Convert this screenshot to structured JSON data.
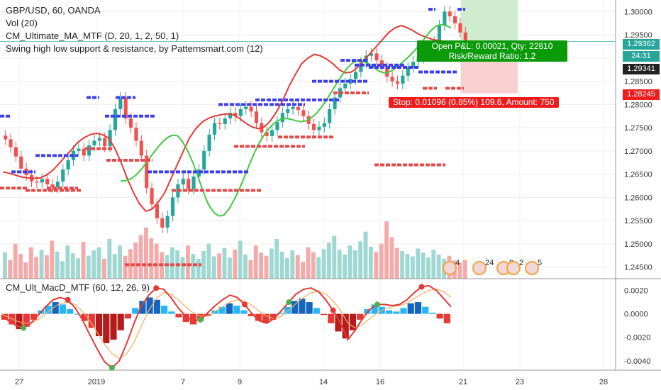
{
  "legend": {
    "symbol": "GBP/USD, 60, OANDA",
    "vol": "Vol (20)",
    "ma": "CM_Ultimate_MA_MTF (D, 20, 1, 2, 50, 1)",
    "swing": "Swing high low support & resistance, by Patternsmart.com (12)"
  },
  "macd_legend": "CM_Ult_MacD_MTF (60, 12, 26, 9)",
  "position": {
    "pnl": "Open P&L: 0.00021, Qty: 22810",
    "rr": "Risk/Reward Ratio: 1.2",
    "stop": "Stop: 0.01096 (0.85%) 109.6, Amount: 750"
  },
  "price_labels": {
    "current": "1.29362",
    "countdown": "24:31",
    "last": "1.29341",
    "stop": "1.28245"
  },
  "colors": {
    "up": "#26a69a",
    "down": "#ef5350",
    "ma_red": "#e53935",
    "ma_green": "#43c743",
    "resistance": "#3d3df0",
    "support": "#e84848",
    "target_zone": "#cfeccf",
    "stop_zone": "#f9d0d0"
  },
  "chart_data": {
    "type": "candlestick",
    "x_ticks": [
      "27",
      "2019",
      "7",
      "9",
      "14",
      "16",
      "21",
      "23",
      "28"
    ],
    "y_ticks": [
      "1.24500",
      "1.25000",
      "1.25500",
      "1.26000",
      "1.26500",
      "1.27000",
      "1.27500",
      "1.28000",
      "1.28500",
      "1.29000",
      "1.29500",
      "1.30000"
    ],
    "ylim": [
      1.2425,
      1.3025
    ],
    "close": [
      1.2725,
      1.2708,
      1.2688,
      1.2662,
      1.2648,
      1.2634,
      1.2632,
      1.264,
      1.2628,
      1.2622,
      1.2634,
      1.266,
      1.268,
      1.27,
      1.2705,
      1.269,
      1.2712,
      1.2722,
      1.2728,
      1.271,
      1.2745,
      1.279,
      1.2815,
      1.277,
      1.275,
      1.2722,
      1.269,
      1.262,
      1.2585,
      1.2555,
      1.2535,
      1.256,
      1.26,
      1.2628,
      1.264,
      1.2618,
      1.2645,
      1.266,
      1.27,
      1.2735,
      1.276,
      1.2758,
      1.277,
      1.2782,
      1.2775,
      1.279,
      1.2795,
      1.2785,
      1.276,
      1.274,
      1.2732,
      1.2745,
      1.2762,
      1.2782,
      1.279,
      1.2795,
      1.2788,
      1.2775,
      1.2758,
      1.2745,
      1.2752,
      1.276,
      1.279,
      1.2815,
      1.2835,
      1.2845,
      1.2855,
      1.287,
      1.289,
      1.2905,
      1.291,
      1.2895,
      1.288,
      1.286,
      1.285,
      1.2845,
      1.2862,
      1.288,
      1.2892,
      1.29,
      1.2905,
      1.2915,
      1.2935,
      1.297,
      1.3,
      1.299,
      1.2975,
      1.2955,
      1.2936
    ],
    "volume": [
      0.44,
      0.31,
      0.58,
      0.41,
      0.27,
      0.52,
      0.36,
      0.48,
      0.39,
      0.63,
      0.45,
      0.29,
      0.55,
      0.42,
      0.34,
      0.61,
      0.38,
      0.47,
      0.52,
      0.33,
      0.66,
      0.41,
      0.55,
      0.38,
      0.49,
      0.6,
      0.72,
      0.85,
      0.67,
      0.58,
      0.44,
      0.39,
      0.52,
      0.47,
      0.36,
      0.55,
      0.41,
      0.33,
      0.46,
      0.58,
      0.37,
      0.42,
      0.51,
      0.35,
      0.48,
      0.63,
      0.4,
      0.31,
      0.55,
      0.43,
      0.38,
      0.5,
      0.66,
      0.45,
      0.34,
      0.47,
      0.39,
      0.28,
      0.52,
      0.44,
      0.36,
      0.49,
      0.6,
      0.71,
      0.48,
      0.4,
      0.55,
      0.47,
      0.62,
      0.78,
      0.53,
      0.44,
      0.58,
      0.95,
      0.69,
      0.51,
      0.46,
      0.41,
      0.37,
      0.5,
      0.43,
      0.35,
      0.48,
      0.4,
      0.33,
      0.38,
      0.3,
      0.27,
      0.31
    ],
    "ma_red": [
      1.2655,
      1.2652,
      1.2648,
      1.2644,
      1.2642,
      1.2641,
      1.2642,
      1.2648,
      1.2658,
      1.2672,
      1.2688,
      1.2702,
      1.2718,
      1.2728,
      1.2735,
      1.2738,
      1.2735,
      1.2728,
      1.2705,
      1.2675,
      1.264,
      1.261,
      1.2585,
      1.257,
      1.2575,
      1.259,
      1.261,
      1.264,
      1.267,
      1.27,
      1.2728,
      1.2748,
      1.2762,
      1.277,
      1.2775,
      1.2778,
      1.278,
      1.2778,
      1.277,
      1.276,
      1.2752,
      1.2748,
      1.2752,
      1.2765,
      1.2785,
      1.281,
      1.284,
      1.2865,
      1.2888,
      1.29,
      1.2908,
      1.2905,
      1.2898,
      1.2888,
      1.2875,
      1.2868,
      1.287,
      1.288,
      1.2895,
      1.291,
      1.2925,
      1.294,
      1.2955,
      1.2965,
      1.297,
      1.2965,
      1.2958,
      1.295,
      1.2945,
      1.294,
      1.2938,
      1.2936,
      1.2936
    ],
    "ma_green": [
      1.2635,
      1.2636,
      1.264,
      1.2648,
      1.266,
      1.2675,
      1.269,
      1.2705,
      1.2718,
      1.2728,
      1.2734,
      1.2733,
      1.272,
      1.27,
      1.2675,
      1.2645,
      1.2612,
      1.2585,
      1.2568,
      1.256,
      1.2562,
      1.2575,
      1.2595,
      1.2618,
      1.2645,
      1.2672,
      1.2698,
      1.272,
      1.2738,
      1.2752,
      1.2762,
      1.2768,
      1.277,
      1.2768,
      1.2765,
      1.2763,
      1.2765,
      1.2772,
      1.2782,
      1.2796,
      1.2812,
      1.283,
      1.2848,
      1.2865,
      1.288,
      1.289,
      1.2895,
      1.2893,
      1.2888,
      1.288,
      1.2872,
      1.2868,
      1.287,
      1.2876,
      1.2885,
      1.2895,
      1.2905,
      1.2917,
      1.293,
      1.2944,
      1.2958,
      1.2968,
      1.2972,
      1.297,
      1.2965
    ],
    "resistance": [
      [
        0,
        16,
        1.2775
      ],
      [
        16,
        50,
        1.2655
      ],
      [
        50,
        110,
        1.269
      ],
      [
        122,
        140,
        1.2815
      ],
      [
        163,
        191,
        1.2815
      ],
      [
        148,
        220,
        1.2775
      ],
      [
        208,
        350,
        1.2655
      ],
      [
        308,
        430,
        1.28
      ],
      [
        360,
        480,
        1.281
      ],
      [
        440,
        520,
        1.285
      ],
      [
        480,
        520,
        1.2895
      ],
      [
        500,
        570,
        1.2885
      ],
      [
        520,
        590,
        1.288
      ],
      [
        590,
        645,
        1.287
      ],
      [
        604,
        614,
        1.3005
      ],
      [
        645,
        656,
        1.3005
      ]
    ],
    "support": [
      [
        0,
        40,
        1.262
      ],
      [
        36,
        116,
        1.2615
      ],
      [
        66,
        110,
        1.262
      ],
      [
        120,
        160,
        1.2705
      ],
      [
        150,
        215,
        1.268
      ],
      [
        176,
        284,
        1.2455
      ],
      [
        242,
        370,
        1.2615
      ],
      [
        330,
        430,
        1.271
      ],
      [
        392,
        470,
        1.273
      ],
      [
        470,
        520,
        1.2825
      ],
      [
        528,
        628,
        1.267
      ],
      [
        596,
        616,
        1.2835
      ],
      [
        628,
        654,
        1.2835
      ]
    ],
    "macd_hist": [
      -0.0005,
      -0.0009,
      -0.0013,
      -0.0011,
      -0.0005,
      0.0003,
      0.0007,
      0.001,
      0.0008,
      0.0004,
      0.0,
      -0.0006,
      -0.0012,
      -0.0019,
      -0.0025,
      -0.0022,
      -0.0014,
      -0.0004,
      0.0005,
      0.0011,
      0.0014,
      0.0012,
      0.0007,
      0.0002,
      -0.0003,
      -0.0007,
      -0.0009,
      -0.0006,
      -0.0002,
      0.0003,
      0.0006,
      0.0009,
      0.0007,
      0.0003,
      -0.0002,
      -0.0006,
      -0.0008,
      -0.0005,
      0.0001,
      0.0006,
      0.0011,
      0.0013,
      0.001,
      0.0005,
      -0.0001,
      -0.0008,
      -0.0015,
      -0.0021,
      -0.0014,
      -0.0005,
      0.0004,
      0.0008,
      0.0006,
      0.0003,
      0.0002,
      0.0005,
      0.0009,
      0.001,
      0.0006,
      0.0001,
      -0.0004,
      -0.0008
    ],
    "macd_line": [
      -0.0002,
      -0.0006,
      -0.001,
      -0.0012,
      -0.0008,
      -0.0001,
      0.0006,
      0.0012,
      0.0014,
      0.0012,
      0.0005,
      -0.0005,
      -0.0018,
      -0.003,
      -0.0041,
      -0.0046,
      -0.004,
      -0.0025,
      -0.0008,
      0.0007,
      0.0016,
      0.0022,
      0.0021,
      0.0014,
      0.0005,
      -0.0002,
      -0.0006,
      -0.0005,
      0.0001,
      0.0007,
      0.0012,
      0.0016,
      0.0014,
      0.0008,
      0.0,
      -0.0006,
      -0.0008,
      -0.0004,
      0.0003,
      0.001,
      0.0017,
      0.0021,
      0.0022,
      0.0019,
      0.0012,
      0.0003,
      -0.0008,
      -0.0022,
      -0.0014,
      -0.0004,
      0.0004,
      0.0008,
      0.0008,
      0.0007,
      0.0008,
      0.0012,
      0.0018,
      0.0023,
      0.0024,
      0.002,
      0.0013,
      0.0006
    ],
    "macd_signal": [
      0.0,
      -0.0003,
      -0.0006,
      -0.0008,
      -0.0008,
      -0.0005,
      0.0,
      0.0005,
      0.0009,
      0.001,
      0.0008,
      0.0002,
      -0.0006,
      -0.0016,
      -0.0026,
      -0.0034,
      -0.0038,
      -0.0034,
      -0.0024,
      -0.001,
      0.0003,
      0.0013,
      0.0018,
      0.0017,
      0.0012,
      0.0006,
      0.0001,
      -0.0002,
      -0.0002,
      0.0002,
      0.0006,
      0.001,
      0.0012,
      0.0011,
      0.0007,
      0.0002,
      -0.0002,
      -0.0004,
      -0.0002,
      0.0003,
      0.0009,
      0.0014,
      0.0018,
      0.0019,
      0.0017,
      0.0011,
      0.0003,
      -0.0008,
      -0.0012,
      -0.0009,
      -0.0004,
      0.0001,
      0.0004,
      0.0006,
      0.0007,
      0.0009,
      0.0013,
      0.0017,
      0.002,
      0.0021,
      0.0019,
      0.0014
    ],
    "macd_ticks": [
      "0.0020",
      "0.0000",
      "-0.0020",
      "-0.0040"
    ],
    "macd_ylim": [
      -0.0048,
      0.003
    ],
    "event_markers": [
      "4",
      "24",
      "8",
      "2",
      "5"
    ]
  }
}
